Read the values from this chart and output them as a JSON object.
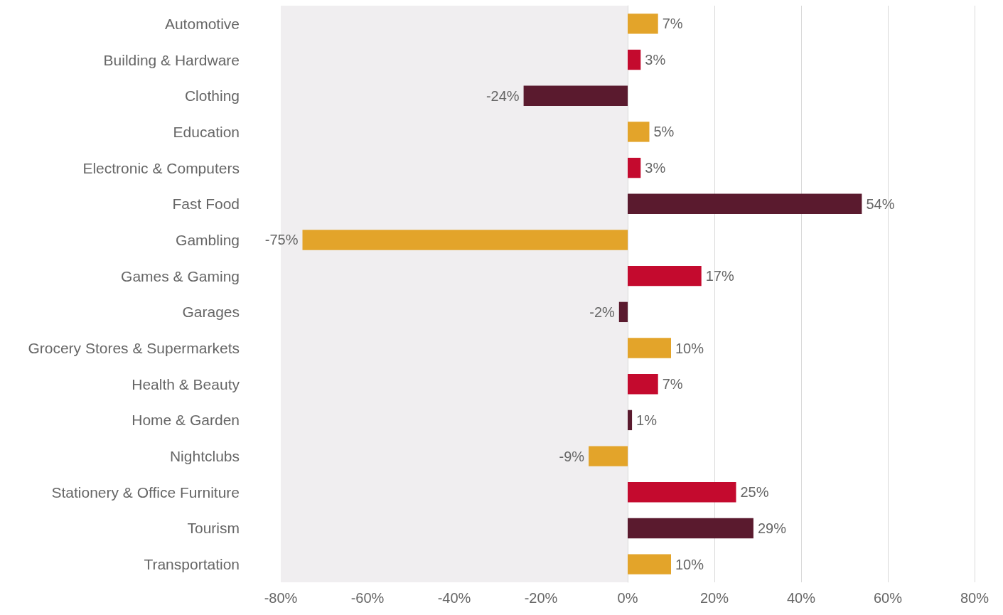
{
  "chart_data": {
    "type": "bar",
    "orientation": "horizontal",
    "categories": [
      "Automotive",
      "Building & Hardware",
      "Clothing",
      "Education",
      "Electronic & Computers",
      "Fast Food",
      "Gambling",
      "Games & Gaming",
      "Garages",
      "Grocery Stores & Supermarkets",
      "Health & Beauty",
      "Home & Garden",
      "Nightclubs",
      "Stationery & Office Furniture",
      "Tourism",
      "Transportation"
    ],
    "values": [
      7,
      3,
      -24,
      5,
      3,
      54,
      -75,
      17,
      -2,
      10,
      7,
      1,
      -9,
      25,
      29,
      10
    ],
    "value_labels": [
      "7%",
      "3%",
      "-24%",
      "5%",
      "3%",
      "54%",
      "-75%",
      "17%",
      "-2%",
      "10%",
      "7%",
      "1%",
      "-9%",
      "25%",
      "29%",
      "10%"
    ],
    "colors": [
      "#e3a42a",
      "#c40a2e",
      "#5a1a2e",
      "#e3a42a",
      "#c40a2e",
      "#5a1a2e",
      "#e3a42a",
      "#c40a2e",
      "#5a1a2e",
      "#e3a42a",
      "#c40a2e",
      "#5a1a2e",
      "#e3a42a",
      "#c40a2e",
      "#5a1a2e",
      "#e3a42a"
    ],
    "xlim": [
      -80,
      80
    ],
    "xticks": [
      {
        "value": -80,
        "label": "-80%"
      },
      {
        "value": -60,
        "label": "-60%"
      },
      {
        "value": -40,
        "label": "-40%"
      },
      {
        "value": -20,
        "label": "-20%"
      },
      {
        "value": 0,
        "label": "0%"
      },
      {
        "value": 20,
        "label": "20%"
      },
      {
        "value": 40,
        "label": "40%"
      },
      {
        "value": 60,
        "label": "60%"
      },
      {
        "value": 80,
        "label": "80%"
      }
    ],
    "bands": [
      {
        "axis": "x",
        "from": -80,
        "to": 0,
        "color": "#f0eef0"
      }
    ],
    "grid": "x"
  }
}
